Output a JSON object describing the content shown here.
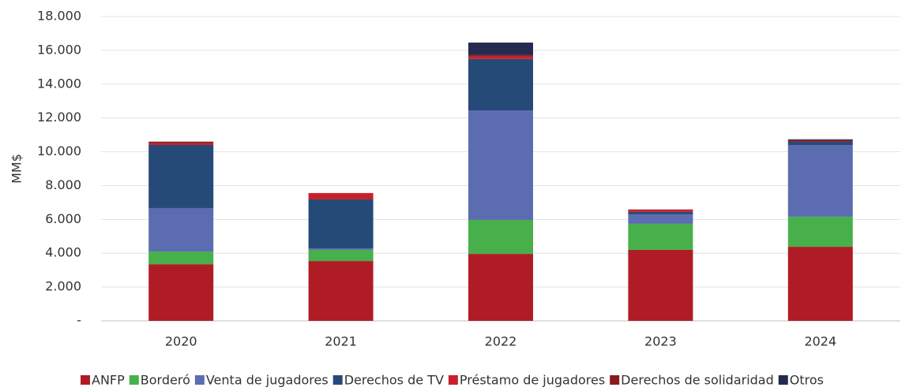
{
  "chart_data": {
    "type": "stacked_bar",
    "y_label": "MM$",
    "categories": [
      "2020",
      "2021",
      "2022",
      "2023",
      "2024"
    ],
    "series": [
      {
        "name": "ANFP",
        "color": "#b01c25",
        "values": [
          3350,
          3540,
          3960,
          4200,
          4380
        ]
      },
      {
        "name": "Borderó",
        "color": "#47b04b",
        "values": [
          750,
          660,
          2010,
          1540,
          1780
        ]
      },
      {
        "name": "Venta de jugadores",
        "color": "#5b6db0",
        "values": [
          2570,
          90,
          6480,
          560,
          4240
        ]
      },
      {
        "name": "Derechos de TV",
        "color": "#264a78",
        "values": [
          3730,
          2890,
          3040,
          140,
          190
        ]
      },
      {
        "name": "Préstamo de jugadores",
        "color": "#c8202b",
        "values": [
          100,
          380,
          180,
          100,
          0
        ]
      },
      {
        "name": "Derechos de solidaridad",
        "color": "#8b1a1f",
        "values": [
          100,
          0,
          50,
          50,
          100
        ]
      },
      {
        "name": "Otros",
        "color": "#252a4f",
        "values": [
          0,
          0,
          740,
          0,
          50
        ]
      }
    ],
    "ylim": [
      0,
      18000
    ],
    "yticks": [
      {
        "value": 0,
        "label": "-"
      },
      {
        "value": 2000,
        "label": "2.000"
      },
      {
        "value": 4000,
        "label": "4.000"
      },
      {
        "value": 6000,
        "label": "6.000"
      },
      {
        "value": 8000,
        "label": "8.000"
      },
      {
        "value": 10000,
        "label": "10.000"
      },
      {
        "value": 12000,
        "label": "12.000"
      },
      {
        "value": 14000,
        "label": "14.000"
      },
      {
        "value": 16000,
        "label": "16.000"
      },
      {
        "value": 18000,
        "label": "18.000"
      }
    ],
    "grid": true
  }
}
